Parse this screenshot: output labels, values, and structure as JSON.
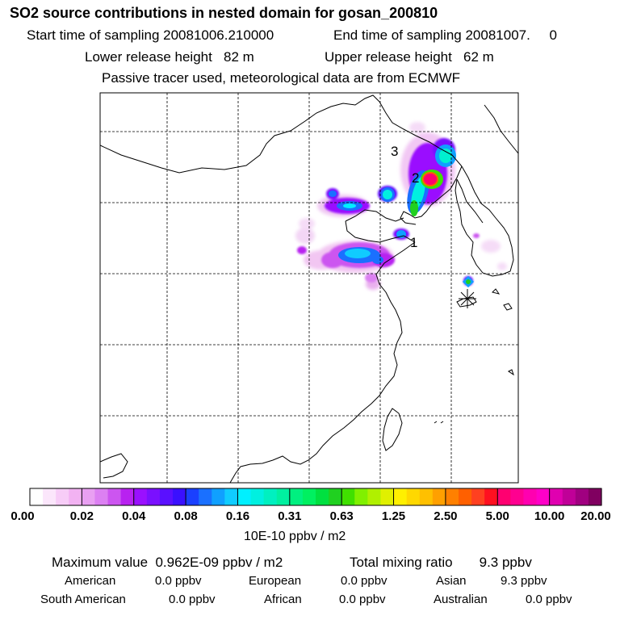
{
  "header": {
    "title": "SO2 source contributions in nested domain for gosan_200810",
    "start_label": "Start time of sampling 20081006.210000",
    "end_label": "End time of sampling 20081007.     0",
    "lower_label": "Lower release height   82 m",
    "upper_label": "Upper release height   62 m",
    "passive_label": "Passive tracer used, meteorological data are from ECMWF"
  },
  "chart_data": {
    "type": "heatmap",
    "title": "SO2 source contributions in nested domain for gosan_200810",
    "colorbar": {
      "unit_label": "10E-10 ppbv / m2",
      "tick_labels": [
        "0.00",
        "0.02",
        "0.04",
        "0.08",
        "0.16",
        "0.31",
        "0.63",
        "1.25",
        "2.50",
        "5.00",
        "10.00",
        "20.00"
      ],
      "colors": [
        "#ffffff",
        "#fbe6fb",
        "#f7ccf7",
        "#f2b2f2",
        "#e9a0f2",
        "#dc80f2",
        "#cc55f0",
        "#b822f0",
        "#9a10ff",
        "#7a10ff",
        "#5a10ff",
        "#3a10ff",
        "#1a40ff",
        "#1a70ff",
        "#10a0ff",
        "#10ccff",
        "#00f0ff",
        "#00f0e0",
        "#00f0c0",
        "#00f0a0",
        "#00f080",
        "#00f060",
        "#00e040",
        "#20d020",
        "#40e000",
        "#80f000",
        "#b0f000",
        "#e0f000",
        "#fff000",
        "#ffd800",
        "#ffc000",
        "#ffa000",
        "#ff8000",
        "#ff6000",
        "#ff4020",
        "#ff1020",
        "#ff0070",
        "#ff0090",
        "#ff00b0",
        "#ff00c8",
        "#e000b0",
        "#c00098",
        "#a00080",
        "#800060"
      ]
    },
    "markers": [
      {
        "label": "1"
      },
      {
        "label": "2"
      },
      {
        "label": "3"
      }
    ],
    "station_symbol": "*",
    "maximum_value_label": "Maximum value  0.962E-09 ppbv / m2",
    "total_mixing_ratio_label": "Total mixing ratio       9.3 ppbv"
  },
  "summary": {
    "american": {
      "label": "American",
      "value": "0.0 ppbv"
    },
    "european": {
      "label": "European",
      "value": "0.0 ppbv"
    },
    "asian": {
      "label": "Asian",
      "value": "9.3 ppbv"
    },
    "south_american": {
      "label": "South American",
      "value": "0.0 ppbv"
    },
    "african": {
      "label": "African",
      "value": "0.0 ppbv"
    },
    "australian": {
      "label": "Australian",
      "value": "0.0 ppbv"
    }
  }
}
